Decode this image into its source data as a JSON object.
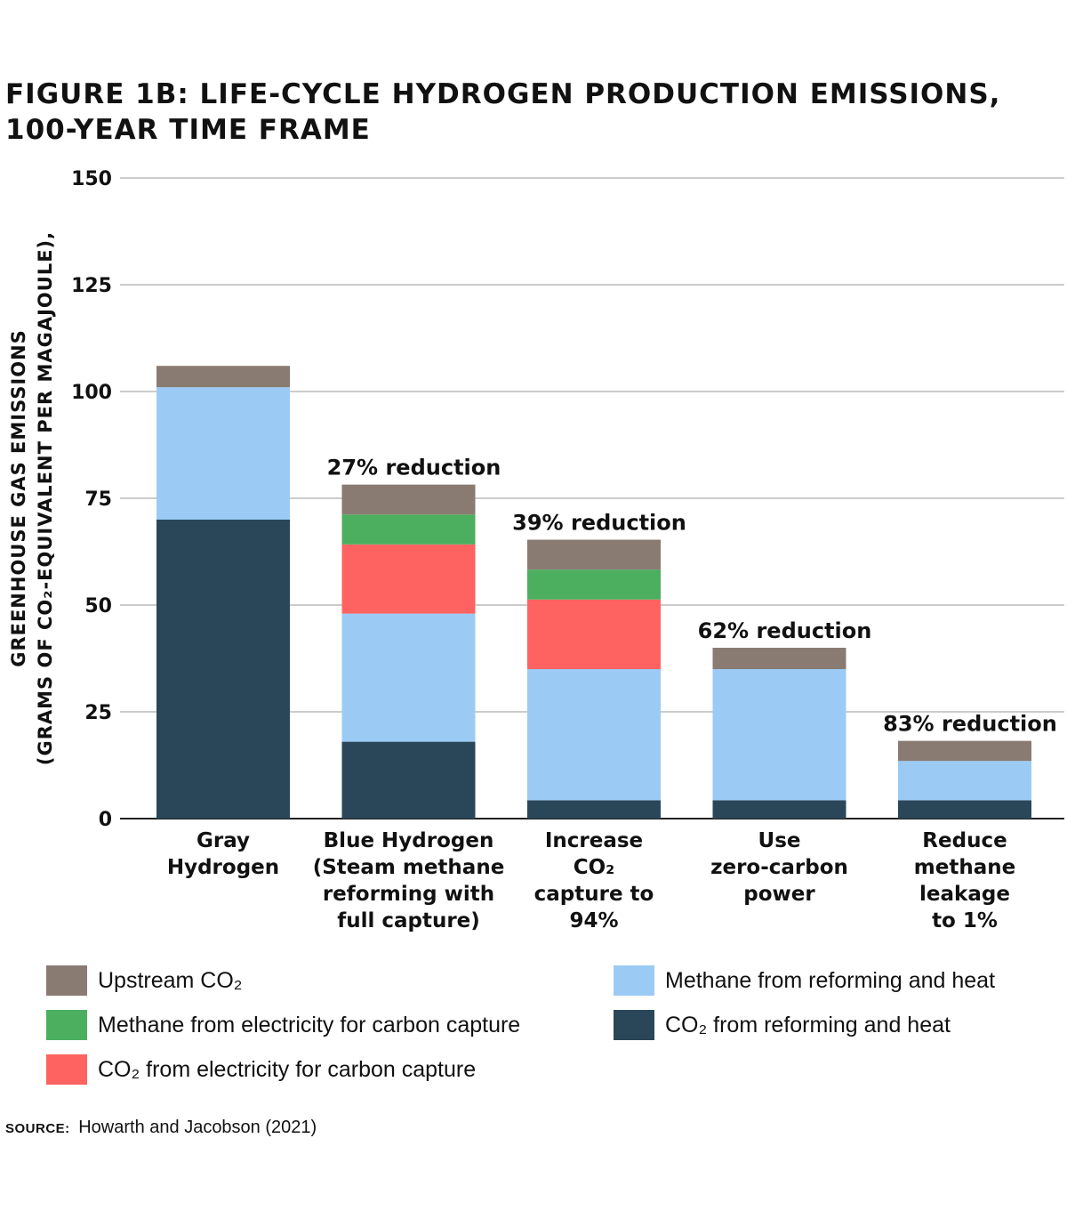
{
  "chart_data": {
    "type": "bar",
    "stacked": true,
    "title": [
      "FIGURE 1B: LIFE-CYCLE HYDROGEN PRODUCTION EMISSIONS,",
      "100-YEAR TIME FRAME"
    ],
    "ylabel": [
      "GREENHOUSE GAS EMISSIONS",
      "(GRAMS OF CO₂-EQUIVALENT PER MAGAJOULE),"
    ],
    "ylim": [
      0,
      150
    ],
    "yticks": [
      0,
      25,
      50,
      75,
      100,
      125,
      150
    ],
    "grid": true,
    "categories": [
      [
        "Gray",
        "Hydrogen"
      ],
      [
        "Blue Hydrogen",
        "(Steam methane",
        "reforming with",
        "full capture)"
      ],
      [
        "Increase",
        "CO₂",
        "capture to",
        "94%"
      ],
      [
        "Use",
        "zero-carbon",
        "power"
      ],
      [
        "Reduce",
        "methane",
        "leakage",
        "to 1%"
      ]
    ],
    "series": [
      {
        "name": "CO₂ from reforming and heat",
        "color": "#2a4759",
        "values": [
          70,
          18,
          4.3,
          4.3,
          4.3
        ]
      },
      {
        "name": "Methane from reforming and heat",
        "color": "#9bcbf4",
        "values": [
          31,
          30,
          30.7,
          30.7,
          9.2
        ]
      },
      {
        "name": "CO₂ from electricity for carbon capture",
        "color": "#ff6361",
        "values": [
          0,
          16.2,
          16.3,
          0,
          0
        ]
      },
      {
        "name": "Methane from electricity for carbon capture",
        "color": "#4caf5f",
        "values": [
          0,
          7,
          7,
          0,
          0
        ]
      },
      {
        "name": "Upstream CO₂",
        "color": "#8a7b72",
        "values": [
          5,
          7,
          7,
          5,
          4.7
        ]
      }
    ],
    "annotations": [
      "",
      "27% reduction",
      "39% reduction",
      "62% reduction",
      "83% reduction"
    ],
    "legend_placement": "bottom",
    "legend_order": [
      "Upstream CO₂",
      "Methane from electricity for carbon capture",
      "CO₂ from electricity for carbon capture",
      "Methane from reforming and heat",
      "CO₂ from reforming and heat"
    ]
  },
  "source": {
    "label": "SOURCE:",
    "text": "Howarth and Jacobson (2021)"
  }
}
